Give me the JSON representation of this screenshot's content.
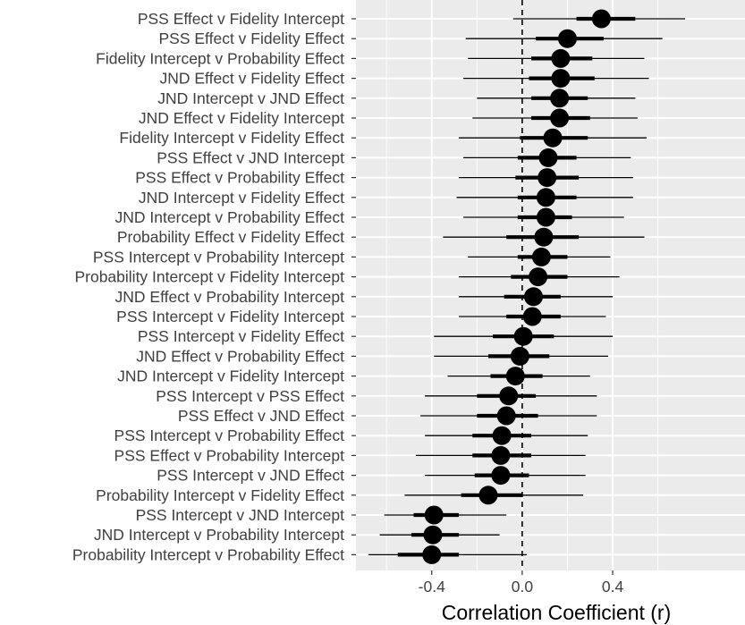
{
  "chart_data": {
    "type": "scatter",
    "title": "",
    "xlabel": "Correlation Coefficient (r)",
    "ylabel": "",
    "xlim": [
      -0.735,
      0.985
    ],
    "xticks": [
      -0.4,
      0.0,
      0.4
    ],
    "xtick_labels": [
      "-0.4",
      "0.0",
      "0.4"
    ],
    "reference_line": 0.0,
    "grid": true,
    "legend": "none",
    "colors": {
      "panel": "#ebebeb",
      "grid": "#ffffff",
      "mark": "#000000",
      "label": "#404040"
    },
    "rows": [
      {
        "label": "PSS Effect v Fidelity Intercept",
        "estimate": 0.35,
        "inner": [
          0.24,
          0.5
        ],
        "outer": [
          -0.04,
          0.72
        ]
      },
      {
        "label": "PSS Effect v Fidelity Effect",
        "estimate": 0.2,
        "inner": [
          0.06,
          0.36
        ],
        "outer": [
          -0.25,
          0.62
        ]
      },
      {
        "label": "Fidelity Intercept v Probability Effect",
        "estimate": 0.17,
        "inner": [
          0.04,
          0.31
        ],
        "outer": [
          -0.24,
          0.54
        ]
      },
      {
        "label": "JND Effect v Fidelity Effect",
        "estimate": 0.17,
        "inner": [
          0.03,
          0.32
        ],
        "outer": [
          -0.26,
          0.56
        ]
      },
      {
        "label": "JND Intercept v JND Effect",
        "estimate": 0.165,
        "inner": [
          0.04,
          0.29
        ],
        "outer": [
          -0.2,
          0.5
        ]
      },
      {
        "label": "JND Effect v Fidelity Intercept",
        "estimate": 0.165,
        "inner": [
          0.04,
          0.3
        ],
        "outer": [
          -0.22,
          0.51
        ]
      },
      {
        "label": "Fidelity Intercept v Fidelity Effect",
        "estimate": 0.135,
        "inner": [
          -0.01,
          0.29
        ],
        "outer": [
          -0.28,
          0.55
        ]
      },
      {
        "label": "PSS Effect v JND Intercept",
        "estimate": 0.115,
        "inner": [
          -0.02,
          0.24
        ],
        "outer": [
          -0.26,
          0.48
        ]
      },
      {
        "label": "PSS Effect v Probability Effect",
        "estimate": 0.11,
        "inner": [
          -0.03,
          0.25
        ],
        "outer": [
          -0.28,
          0.49
        ]
      },
      {
        "label": "JND Intercept v Fidelity Effect",
        "estimate": 0.105,
        "inner": [
          -0.02,
          0.24
        ],
        "outer": [
          -0.29,
          0.49
        ]
      },
      {
        "label": "JND Intercept v Probability Effect",
        "estimate": 0.105,
        "inner": [
          -0.02,
          0.22
        ],
        "outer": [
          -0.26,
          0.45
        ]
      },
      {
        "label": "Probability Effect v Fidelity Effect",
        "estimate": 0.095,
        "inner": [
          -0.07,
          0.25
        ],
        "outer": [
          -0.35,
          0.54
        ]
      },
      {
        "label": "PSS Intercept v Probability Intercept",
        "estimate": 0.085,
        "inner": [
          -0.02,
          0.2
        ],
        "outer": [
          -0.24,
          0.39
        ]
      },
      {
        "label": "Probability Intercept v Fidelity Intercept",
        "estimate": 0.07,
        "inner": [
          -0.05,
          0.2
        ],
        "outer": [
          -0.28,
          0.43
        ]
      },
      {
        "label": "JND Effect v Probability Intercept",
        "estimate": 0.05,
        "inner": [
          -0.08,
          0.17
        ],
        "outer": [
          -0.28,
          0.4
        ]
      },
      {
        "label": "PSS Intercept v Fidelity Intercept",
        "estimate": 0.045,
        "inner": [
          -0.07,
          0.17
        ],
        "outer": [
          -0.28,
          0.37
        ]
      },
      {
        "label": "PSS Intercept v Fidelity Effect",
        "estimate": 0.005,
        "inner": [
          -0.13,
          0.14
        ],
        "outer": [
          -0.39,
          0.4
        ]
      },
      {
        "label": "JND Effect v Probability Effect",
        "estimate": -0.01,
        "inner": [
          -0.15,
          0.12
        ],
        "outer": [
          -0.39,
          0.38
        ]
      },
      {
        "label": "JND Intercept v Fidelity Intercept",
        "estimate": -0.03,
        "inner": [
          -0.14,
          0.09
        ],
        "outer": [
          -0.33,
          0.3
        ]
      },
      {
        "label": "PSS Intercept v PSS Effect",
        "estimate": -0.06,
        "inner": [
          -0.2,
          0.06
        ],
        "outer": [
          -0.43,
          0.33
        ]
      },
      {
        "label": "PSS Effect v JND Effect",
        "estimate": -0.07,
        "inner": [
          -0.2,
          0.07
        ],
        "outer": [
          -0.45,
          0.33
        ]
      },
      {
        "label": "PSS Intercept v Probability Effect",
        "estimate": -0.09,
        "inner": [
          -0.22,
          0.04
        ],
        "outer": [
          -0.43,
          0.29
        ]
      },
      {
        "label": "PSS Effect v Probability Intercept",
        "estimate": -0.095,
        "inner": [
          -0.22,
          0.04
        ],
        "outer": [
          -0.47,
          0.28
        ]
      },
      {
        "label": "PSS Intercept v JND Effect",
        "estimate": -0.095,
        "inner": [
          -0.21,
          0.03
        ],
        "outer": [
          -0.43,
          0.28
        ]
      },
      {
        "label": "Probability Intercept v Fidelity Effect",
        "estimate": -0.15,
        "inner": [
          -0.27,
          0.0
        ],
        "outer": [
          -0.52,
          0.27
        ]
      },
      {
        "label": "PSS Intercept v JND Intercept",
        "estimate": -0.39,
        "inner": [
          -0.48,
          -0.28
        ],
        "outer": [
          -0.61,
          -0.07
        ]
      },
      {
        "label": "JND Intercept v Probability Intercept",
        "estimate": -0.395,
        "inner": [
          -0.49,
          -0.28
        ],
        "outer": [
          -0.63,
          -0.1
        ]
      },
      {
        "label": "Probability Intercept v Probability Effect",
        "estimate": -0.4,
        "inner": [
          -0.55,
          -0.28
        ],
        "outer": [
          -0.68,
          0.02
        ]
      }
    ]
  }
}
